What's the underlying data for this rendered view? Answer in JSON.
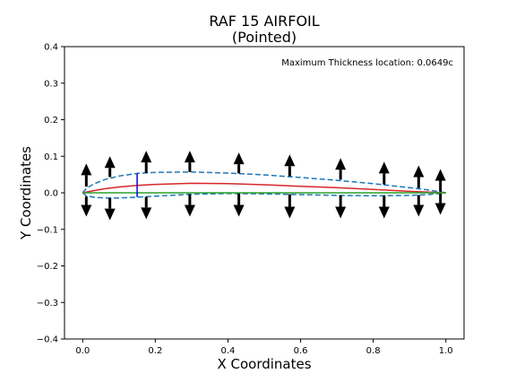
{
  "chart_data": {
    "type": "line",
    "title": "RAF 15 AIRFOIL",
    "subtitle": "(Pointed)",
    "xlabel": "X Coordinates",
    "ylabel": "Y Coordinates",
    "xlim": [
      -0.05,
      1.05
    ],
    "ylim": [
      -0.4,
      0.4
    ],
    "x_ticks": [
      0.0,
      0.2,
      0.4,
      0.6,
      0.8,
      1.0
    ],
    "x_tick_labels": [
      "0.0",
      "0.2",
      "0.4",
      "0.6",
      "0.8",
      "1.0"
    ],
    "y_ticks": [
      -0.4,
      -0.3,
      -0.2,
      -0.1,
      0.0,
      0.1,
      0.2,
      0.3,
      0.4
    ],
    "y_tick_labels": [
      "−0.4",
      "−0.3",
      "−0.2",
      "−0.1",
      "0.0",
      "0.1",
      "0.2",
      "0.3",
      "0.4"
    ],
    "grid": false,
    "annotation": "Maximum Thickness location: 0.0649c",
    "series": [
      {
        "role": "upper-surface",
        "color": "#1f77b4",
        "style": "dashed",
        "x": [
          0.0,
          0.01,
          0.03,
          0.06,
          0.1,
          0.15,
          0.2,
          0.3,
          0.4,
          0.5,
          0.6,
          0.7,
          0.8,
          0.9,
          0.95,
          1.0
        ],
        "y": [
          0.0,
          0.012,
          0.024,
          0.036,
          0.046,
          0.053,
          0.056,
          0.057,
          0.054,
          0.049,
          0.042,
          0.034,
          0.025,
          0.014,
          0.008,
          0.0
        ]
      },
      {
        "role": "lower-surface",
        "color": "#1f77b4",
        "style": "dashed",
        "x": [
          0.0,
          0.01,
          0.03,
          0.06,
          0.1,
          0.15,
          0.2,
          0.3,
          0.4,
          0.5,
          0.6,
          0.7,
          0.8,
          0.9,
          0.95,
          1.0
        ],
        "y": [
          0.0,
          -0.008,
          -0.012,
          -0.014,
          -0.014,
          -0.012,
          -0.009,
          -0.004,
          -0.002,
          -0.003,
          -0.005,
          -0.007,
          -0.008,
          -0.007,
          -0.005,
          0.0
        ]
      },
      {
        "role": "camber-line",
        "color": "#d62728",
        "style": "solid",
        "x": [
          0.0,
          0.03,
          0.06,
          0.1,
          0.15,
          0.2,
          0.3,
          0.4,
          0.5,
          0.6,
          0.7,
          0.8,
          0.9,
          1.0
        ],
        "y": [
          0.0,
          0.006,
          0.011,
          0.016,
          0.02,
          0.023,
          0.026,
          0.025,
          0.022,
          0.018,
          0.014,
          0.009,
          0.004,
          0.0
        ]
      },
      {
        "role": "chord-line",
        "color": "#2ca02c",
        "style": "solid",
        "x": [
          0.0,
          1.0
        ],
        "y": [
          0.0,
          0.0
        ]
      }
    ],
    "max_thickness_marker": {
      "color": "#0000ff",
      "x": 0.15,
      "y_top": 0.053,
      "y_bottom": -0.012
    },
    "arrows": {
      "color": "#000000",
      "up": [
        {
          "x": 0.01,
          "y_from": 0.017,
          "y_to": 0.08
        },
        {
          "x": 0.075,
          "y_from": 0.043,
          "y_to": 0.1
        },
        {
          "x": 0.175,
          "y_from": 0.054,
          "y_to": 0.115
        },
        {
          "x": 0.295,
          "y_from": 0.057,
          "y_to": 0.115
        },
        {
          "x": 0.43,
          "y_from": 0.053,
          "y_to": 0.11
        },
        {
          "x": 0.57,
          "y_from": 0.045,
          "y_to": 0.105
        },
        {
          "x": 0.71,
          "y_from": 0.036,
          "y_to": 0.095
        },
        {
          "x": 0.83,
          "y_from": 0.023,
          "y_to": 0.085
        },
        {
          "x": 0.925,
          "y_from": 0.013,
          "y_to": 0.075
        },
        {
          "x": 0.985,
          "y_from": 0.003,
          "y_to": 0.065
        }
      ],
      "down": [
        {
          "x": 0.01,
          "y_from": -0.01,
          "y_to": -0.065
        },
        {
          "x": 0.075,
          "y_from": -0.014,
          "y_to": -0.075
        },
        {
          "x": 0.175,
          "y_from": -0.011,
          "y_to": -0.072
        },
        {
          "x": 0.295,
          "y_from": -0.004,
          "y_to": -0.065
        },
        {
          "x": 0.43,
          "y_from": -0.002,
          "y_to": -0.065
        },
        {
          "x": 0.57,
          "y_from": -0.004,
          "y_to": -0.07
        },
        {
          "x": 0.71,
          "y_from": -0.007,
          "y_to": -0.07
        },
        {
          "x": 0.83,
          "y_from": -0.008,
          "y_to": -0.07
        },
        {
          "x": 0.925,
          "y_from": -0.006,
          "y_to": -0.065
        },
        {
          "x": 0.985,
          "y_from": -0.002,
          "y_to": -0.06
        }
      ]
    }
  }
}
